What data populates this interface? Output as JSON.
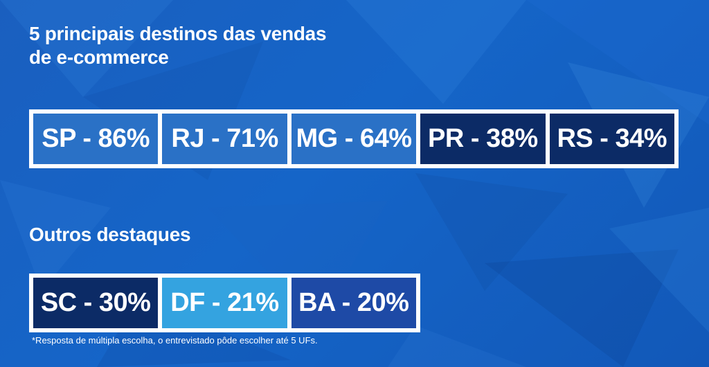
{
  "title": {
    "line1": "5 principais destinos das vendas",
    "line2": "de e-commerce"
  },
  "top_destinations": [
    {
      "label": "SP - 86%",
      "color": "#2a71c6"
    },
    {
      "label": "RJ - 71%",
      "color": "#2a71c6"
    },
    {
      "label": "MG - 64%",
      "color": "#2a71c6"
    },
    {
      "label": "PR - 38%",
      "color": "#0c2b66"
    },
    {
      "label": "RS - 34%",
      "color": "#0c2b66"
    }
  ],
  "highlights": {
    "heading": "Outros destaques",
    "items": [
      {
        "label": "SC - 30%",
        "color": "#0c2b66"
      },
      {
        "label": "DF - 21%",
        "color": "#34a3e0"
      },
      {
        "label": "BA - 20%",
        "color": "#1e4aa6"
      }
    ]
  },
  "footnote": "*Resposta de múltipla escolha, o entrevistado pôde escolher até 5 UFs."
}
